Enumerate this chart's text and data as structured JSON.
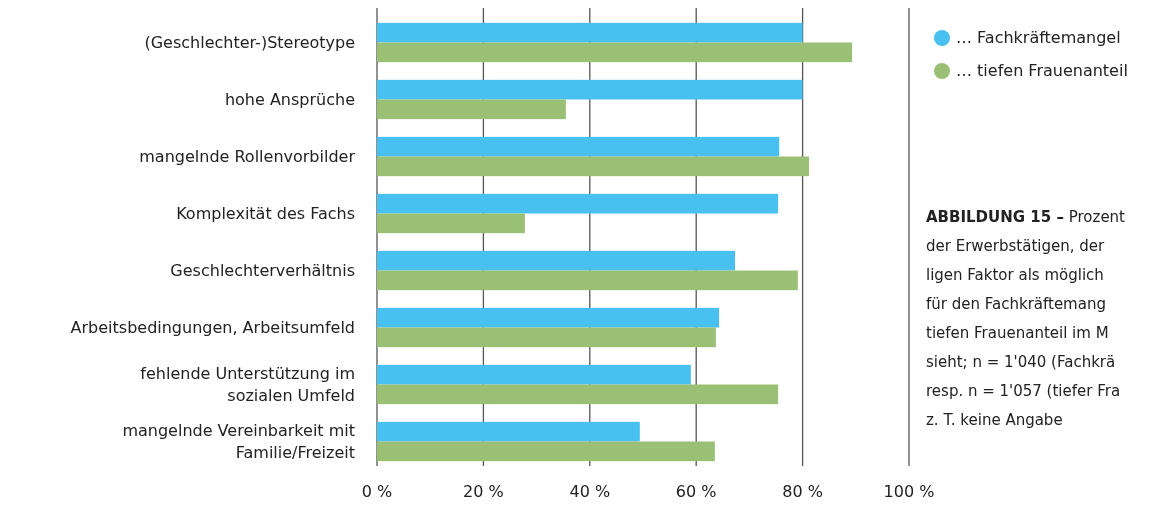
{
  "chart_data": {
    "type": "bar",
    "orientation": "horizontal",
    "categories": [
      "(Geschlechter-)Stereotype",
      "hohe Ansprüche",
      "mangelnde Rollenvorbilder",
      "Komplexität des Fachs",
      "Geschlechterverhältnis",
      "Arbeitsbedingungen, Arbeitsumfeld",
      "fehlende Unterstützung im\nsozialen Umfeld",
      "mangelnde Vereinbarkeit mit\nFamilie/Freizeit"
    ],
    "series": [
      {
        "name": "… Fachkräftemangel",
        "color": "#49c1f0",
        "values": [
          80,
          80,
          75.6,
          75.4,
          67.3,
          64.3,
          59,
          49.4
        ]
      },
      {
        "name": "… tiefen Frauenanteil",
        "color": "#9ac075",
        "values": [
          89.3,
          35.5,
          81.2,
          27.8,
          79.1,
          63.7,
          75.4,
          63.5
        ]
      }
    ],
    "xlim": [
      0,
      100
    ],
    "xticks": [
      {
        "value": 0,
        "label": "0 %"
      },
      {
        "value": 20,
        "label": "20 %"
      },
      {
        "value": 40,
        "label": "40 %"
      },
      {
        "value": 60,
        "label": "60 %"
      },
      {
        "value": 80,
        "label": "80 %"
      },
      {
        "value": 100,
        "label": "100 %"
      }
    ],
    "grid": "x",
    "legend": "top right",
    "marker": "circle",
    "annotations": [
      "ABBILDUNG 15 –",
      "Prozent",
      "der Erwerbstätigen, der",
      "ligen Faktor als möglich",
      "für den Fachkräftemang",
      "tiefen Frauenanteil im M",
      "sieht; n = 1'040 (Fachkrä",
      "resp. n = 1'057 (tiefer Fra",
      "z. T. keine Angabe"
    ]
  }
}
